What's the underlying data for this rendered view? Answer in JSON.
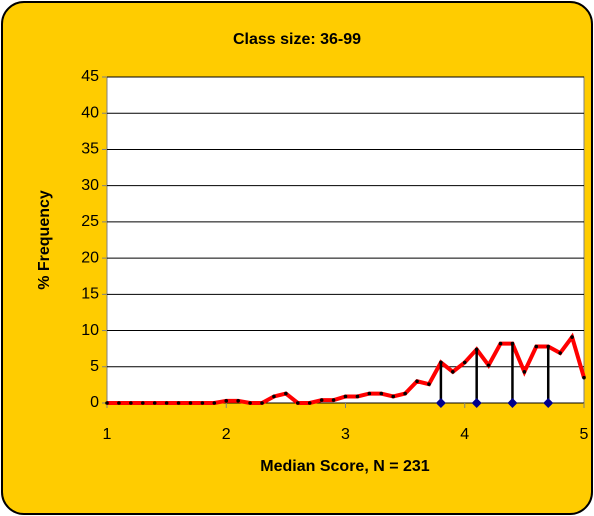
{
  "chart_data": {
    "type": "line",
    "title": "Class size: 36-99",
    "xlabel": "Median Score, N = 231",
    "ylabel": "% Frequency",
    "x": [
      1,
      1.1,
      1.2,
      1.3,
      1.4,
      1.5,
      1.6,
      1.7,
      1.8,
      1.9,
      2,
      2.1,
      2.2,
      2.3,
      2.4,
      2.5,
      2.6,
      2.7,
      2.8,
      2.9,
      3,
      3.1,
      3.2,
      3.3,
      3.4,
      3.5,
      3.6,
      3.7,
      3.8,
      3.9,
      4,
      4.1,
      4.2,
      4.3,
      4.4,
      4.5,
      4.6,
      4.7,
      4.8,
      4.9,
      5
    ],
    "series": [
      {
        "color": "#ff0000",
        "values": [
          0,
          0,
          0,
          0,
          0,
          0,
          0,
          0,
          0,
          0,
          0.3,
          0.3,
          0,
          0,
          0.9,
          1.3,
          0,
          0,
          0.4,
          0.4,
          0.9,
          0.9,
          1.3,
          1.3,
          0.9,
          1.3,
          3.0,
          2.6,
          5.6,
          4.3,
          5.6,
          7.4,
          5.2,
          8.2,
          8.2,
          4.3,
          7.8,
          7.8,
          6.9,
          9.1,
          3.5
        ]
      }
    ],
    "drop_lines": [
      3.8,
      4.1,
      4.4,
      4.7
    ],
    "drop_line_color": "#000000",
    "drop_marker_color": "#00008b",
    "xlim": [
      1,
      5
    ],
    "xticks": [
      1,
      2,
      3,
      4,
      5
    ],
    "ylim": [
      0,
      45
    ],
    "yticks": [
      0,
      5,
      10,
      15,
      20,
      25,
      30,
      35,
      40,
      45
    ],
    "grid": true
  }
}
